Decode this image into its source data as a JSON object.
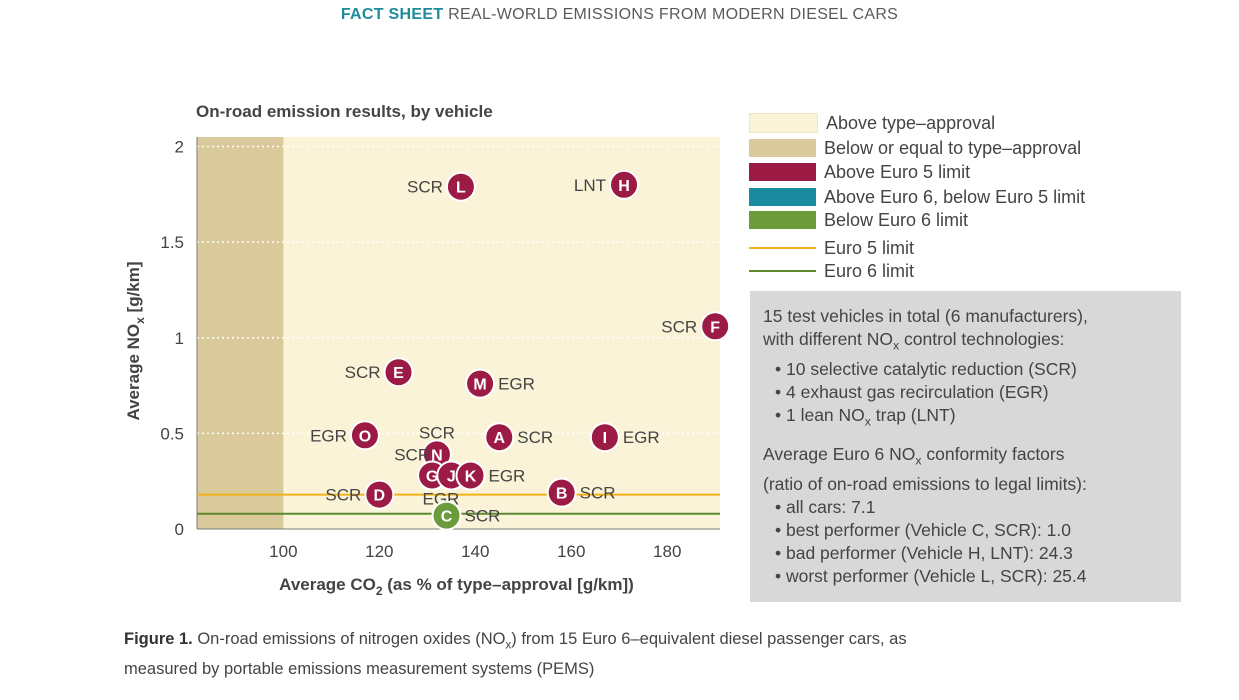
{
  "header": {
    "label_bold": "FACT SHEET",
    "label_rest": "REAL-WORLD EMISSIONS FROM MODERN DIESEL CARS"
  },
  "chart_data": {
    "type": "scatter",
    "title": "On-road emission results, by vehicle",
    "xlabel_pre": "Average CO",
    "xlabel_sub": "2",
    "xlabel_post": " (as % of type–approval [g/km])",
    "ylabel_pre": "Average NO",
    "ylabel_sub": "x",
    "ylabel_post": " [g/km]",
    "xlim": [
      82,
      191
    ],
    "ylim": [
      0,
      2.05
    ],
    "xticks": [
      100,
      120,
      140,
      160,
      180
    ],
    "yticks": [
      0,
      0.5,
      1,
      1.5,
      2
    ],
    "ytick_labels": [
      "0",
      "0.5",
      "1",
      "1.5",
      "2"
    ],
    "type_approval_x": 100,
    "euro5_limit": 0.18,
    "euro6_limit": 0.08,
    "grid": "dotted horizontal",
    "points": [
      {
        "id": "L",
        "tech": "SCR",
        "x": 137,
        "y": 1.79,
        "category": "above_euro5",
        "label_side": "left"
      },
      {
        "id": "H",
        "tech": "LNT",
        "x": 171,
        "y": 1.8,
        "category": "above_euro5",
        "label_side": "left"
      },
      {
        "id": "F",
        "tech": "SCR",
        "x": 190,
        "y": 1.06,
        "category": "above_euro5",
        "label_side": "left"
      },
      {
        "id": "E",
        "tech": "SCR",
        "x": 124,
        "y": 0.82,
        "category": "above_euro5",
        "label_side": "left"
      },
      {
        "id": "M",
        "tech": "EGR",
        "x": 141,
        "y": 0.76,
        "category": "above_euro5",
        "label_side": "right"
      },
      {
        "id": "O",
        "tech": "EGR",
        "x": 117,
        "y": 0.49,
        "category": "above_euro5",
        "label_side": "left"
      },
      {
        "id": "A",
        "tech": "SCR",
        "x": 145,
        "y": 0.48,
        "category": "above_euro5",
        "label_side": "right"
      },
      {
        "id": "I",
        "tech": "EGR",
        "x": 167,
        "y": 0.48,
        "category": "above_euro5",
        "label_side": "right"
      },
      {
        "id": "N",
        "tech": "SCR",
        "x": 132,
        "y": 0.39,
        "category": "above_euro5",
        "label_side": "above"
      },
      {
        "id": "G",
        "tech": "SCR",
        "x": 131,
        "y": 0.28,
        "category": "above_euro5",
        "label_side": "upleft"
      },
      {
        "id": "J",
        "tech": "",
        "x": 135,
        "y": 0.28,
        "category": "above_euro5",
        "label_side": "none"
      },
      {
        "id": "K",
        "tech": "EGR",
        "x": 139,
        "y": 0.28,
        "category": "above_euro5",
        "label_side": "right"
      },
      {
        "id": "D",
        "tech": "SCR",
        "x": 120,
        "y": 0.18,
        "category": "above_euro5",
        "label_side": "left"
      },
      {
        "id": "D2",
        "tech": "EGR",
        "x": 129,
        "y": 0.16,
        "category": "label_only",
        "label_side": "none"
      },
      {
        "id": "B",
        "tech": "SCR",
        "x": 158,
        "y": 0.19,
        "category": "above_euro5",
        "label_side": "right"
      },
      {
        "id": "C",
        "tech": "SCR",
        "x": 134,
        "y": 0.07,
        "category": "below_euro6",
        "label_side": "right"
      }
    ]
  },
  "legend": [
    {
      "label": "Above type–approval",
      "kind": "box",
      "color": "#faf3d7"
    },
    {
      "label": "Below or equal to type–approval",
      "kind": "box",
      "color": "#d9c99b"
    },
    {
      "label": "Above Euro 5 limit",
      "kind": "box",
      "color": "#9b1b45"
    },
    {
      "label": "Above Euro 6, below Euro 5 limit",
      "kind": "box",
      "color": "#1a8a9e"
    },
    {
      "label": "Below Euro 6 limit",
      "kind": "box",
      "color": "#6b9b3a"
    },
    {
      "label": "Euro 5 limit",
      "kind": "line",
      "color": "#f2b21b"
    },
    {
      "label": "Euro 6 limit",
      "kind": "line",
      "color": "#5c8a2e"
    }
  ],
  "colors": {
    "above_type_approval_bg": "#faf3d7",
    "below_type_approval_bg": "#d9c99b",
    "above_euro5": "#9b1b45",
    "below_euro6": "#6b9b3a",
    "euro5_line": "#f2b21b",
    "euro6_line": "#5c8a2e"
  },
  "infobox": {
    "intro1": "15 test vehicles in total (6 manufacturers),",
    "intro2_pre": "with different NO",
    "intro2_sub": "x",
    "intro2_post": " control technologies:",
    "b1": "• 10 selective catalytic reduction (SCR)",
    "b2": "• 4 exhaust gas recirculation (EGR)",
    "b3_pre": "• 1 lean NO",
    "b3_sub": "x",
    "b3_post": " trap (LNT)",
    "cf1_pre": "Average Euro 6 NO",
    "cf1_sub": "x",
    "cf1_post": " conformity factors",
    "cf2": "(ratio of on-road emissions to legal limits):",
    "c1": "• all cars: 7.1",
    "c2": "• best performer (Vehicle C, SCR): 1.0",
    "c3": "• bad performer (Vehicle H, LNT): 24.3",
    "c4": "• worst performer (Vehicle L, SCR): 25.4"
  },
  "caption": {
    "label": "Figure 1.",
    "text_pre": " On-road emissions of nitrogen oxides (NO",
    "text_sub": "x",
    "text_post": ") from 15 Euro 6–equivalent diesel passenger cars, as",
    "line2": "measured by portable emissions measurement systems (PEMS)"
  }
}
